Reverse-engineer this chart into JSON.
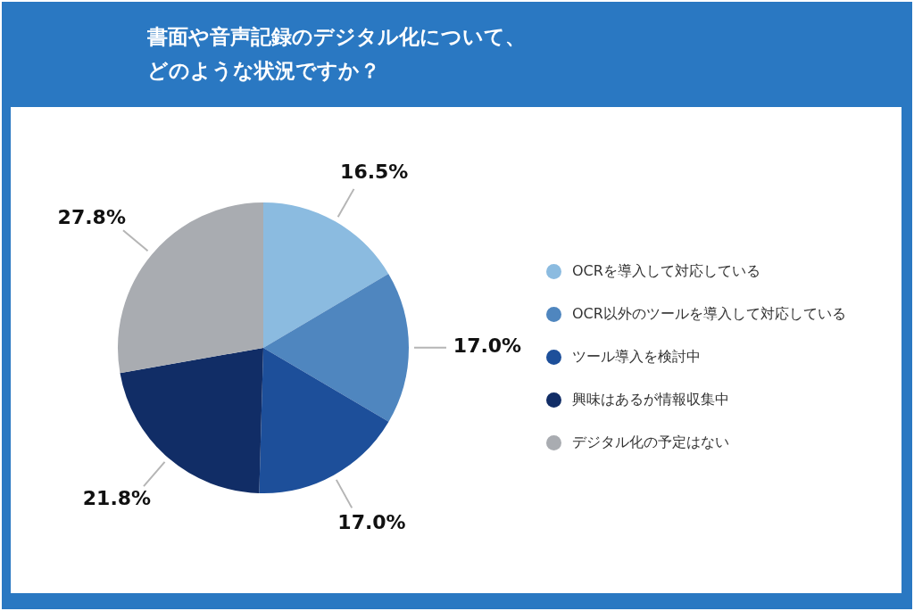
{
  "chart_data": {
    "type": "pie",
    "title": "書面や音声記録のデジタル化について、どのような状況ですか？",
    "categories": [
      "OCRを導入して対応している",
      "OCR以外のツールを導入して対応している",
      "ツール導入を検討中",
      "興味はあるが情報収集中",
      "デジタル化の予定はない"
    ],
    "values": [
      16.5,
      17.0,
      17.0,
      21.8,
      27.8
    ],
    "value_labels": [
      "16.5%",
      "17.0%",
      "17.0%",
      "21.8%",
      "27.8%"
    ],
    "colors": [
      "#8bbbe0",
      "#4f86bf",
      "#1d4f9a",
      "#112d66",
      "#a9acb1"
    ],
    "legend": "right"
  }
}
